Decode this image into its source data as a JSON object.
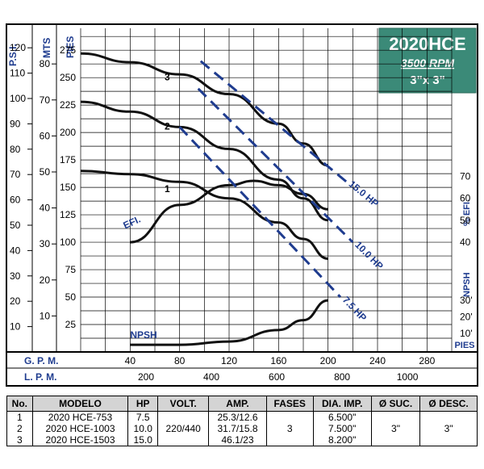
{
  "header": {
    "model": "2020HCE",
    "rpm": "3500 RPM",
    "size": "3\"x 3\""
  },
  "axes": {
    "psi_label": "P.S.I.",
    "mts_label": "MTS",
    "pies_label": "PIES",
    "gpm_label": "G. P. M.",
    "lpm_label": "L. P. M.",
    "efi_label": "% EFI.",
    "npsh_label": "NPSH",
    "npsh_unit": "PIES",
    "psi_ticks": [
      "10",
      "20",
      "30",
      "40",
      "50",
      "60",
      "70",
      "80",
      "90",
      "100",
      "110",
      "120"
    ],
    "mts_ticks": [
      "10",
      "20",
      "30",
      "40",
      "50",
      "60",
      "70",
      "80"
    ],
    "pies_ticks": [
      "25",
      "50",
      "75",
      "100",
      "125",
      "150",
      "175",
      "200",
      "225",
      "250",
      "275"
    ],
    "gpm_ticks": [
      "40",
      "80",
      "120",
      "160",
      "200",
      "240",
      "280"
    ],
    "lpm_ticks": [
      "200",
      "400",
      "600",
      "800",
      "1000"
    ],
    "efi_ticks": [
      "70",
      "60",
      "50",
      "40"
    ],
    "npsh_ticks": [
      "30'",
      "20'",
      "10'"
    ]
  },
  "chart_data": {
    "type": "line",
    "x_unit": "G.P.M.",
    "y_unit": "PIES",
    "xlim": [
      0,
      300
    ],
    "ylim": [
      0,
      295
    ],
    "series": [
      {
        "name": "3",
        "x": [
          0,
          40,
          80,
          120,
          160,
          180,
          200
        ],
        "y": [
          272,
          264,
          253,
          235,
          208,
          190,
          170
        ]
      },
      {
        "name": "2",
        "x": [
          0,
          40,
          80,
          120,
          160,
          180,
          200
        ],
        "y": [
          228,
          219,
          205,
          185,
          157,
          140,
          120
        ]
      },
      {
        "name": "1",
        "x": [
          0,
          40,
          80,
          120,
          160,
          180,
          200
        ],
        "y": [
          165,
          162,
          155,
          140,
          118,
          103,
          85
        ]
      }
    ],
    "efficiency": {
      "label": "EFI.",
      "x": [
        40,
        80,
        120,
        140,
        160,
        180,
        200
      ],
      "pct": [
        40,
        57,
        66,
        68,
        66,
        62,
        55
      ]
    },
    "npsh": {
      "label": "NPSH",
      "x": [
        40,
        80,
        120,
        160,
        180,
        200
      ],
      "feet": [
        3,
        3,
        5,
        12,
        18,
        30
      ]
    },
    "hp_lines": [
      {
        "label": "15.0 HP",
        "x": [
          97,
          215
        ],
        "y": [
          265,
          155
        ]
      },
      {
        "label": "10.0 HP",
        "x": [
          95,
          220
        ],
        "y": [
          240,
          100
        ]
      },
      {
        "label": "7.5 HP",
        "x": [
          80,
          210
        ],
        "y": [
          205,
          50
        ]
      }
    ]
  },
  "table": {
    "headers": [
      "No.",
      "MODELO",
      "HP",
      "VOLT.",
      "AMP.",
      "FASES",
      "DIA. IMP.",
      "Ø SUC.",
      "Ø DESC."
    ],
    "rows": [
      [
        "1",
        "2020 HCE-753",
        "7.5",
        "",
        "25.3/12.6",
        "",
        "6.500\"",
        "",
        ""
      ],
      [
        "2",
        "2020 HCE-1003",
        "10.0",
        "220/440",
        "31.7/15.8",
        "3",
        "7.500\"",
        "3\"",
        "3\""
      ],
      [
        "3",
        "2020 HCE-1503",
        "15.0",
        "",
        "46.1/23",
        "",
        "8.200\"",
        "",
        ""
      ]
    ]
  }
}
